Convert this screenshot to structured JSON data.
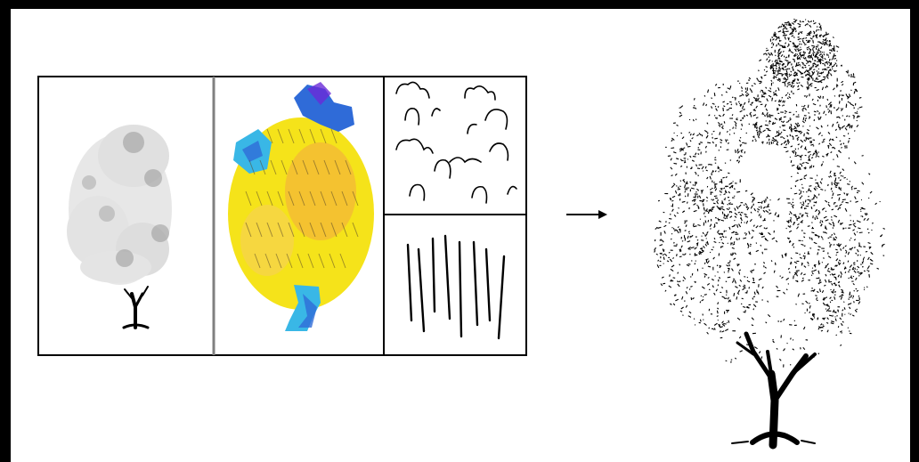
{
  "figure": {
    "panels": [
      {
        "id": "tone-map",
        "description_icon": "grayscale-tree-sketch"
      },
      {
        "id": "direction-field",
        "description_icon": "colored-orientation-field"
      },
      {
        "id": "texture-examples",
        "description_icon": "curly-and-straight-strokes"
      }
    ],
    "arrow_icon": "right-arrow-icon",
    "output_icon": "stippled-tree-drawing",
    "colors": {
      "frame_border": "#000000",
      "panel_border": "#000000",
      "panel_divider": "#808080",
      "yellow": "#f5e31a",
      "orange": "#f3b33b",
      "blue": "#2f6bd8",
      "violet": "#6a2bd8",
      "cyan": "#39b7e6"
    }
  }
}
